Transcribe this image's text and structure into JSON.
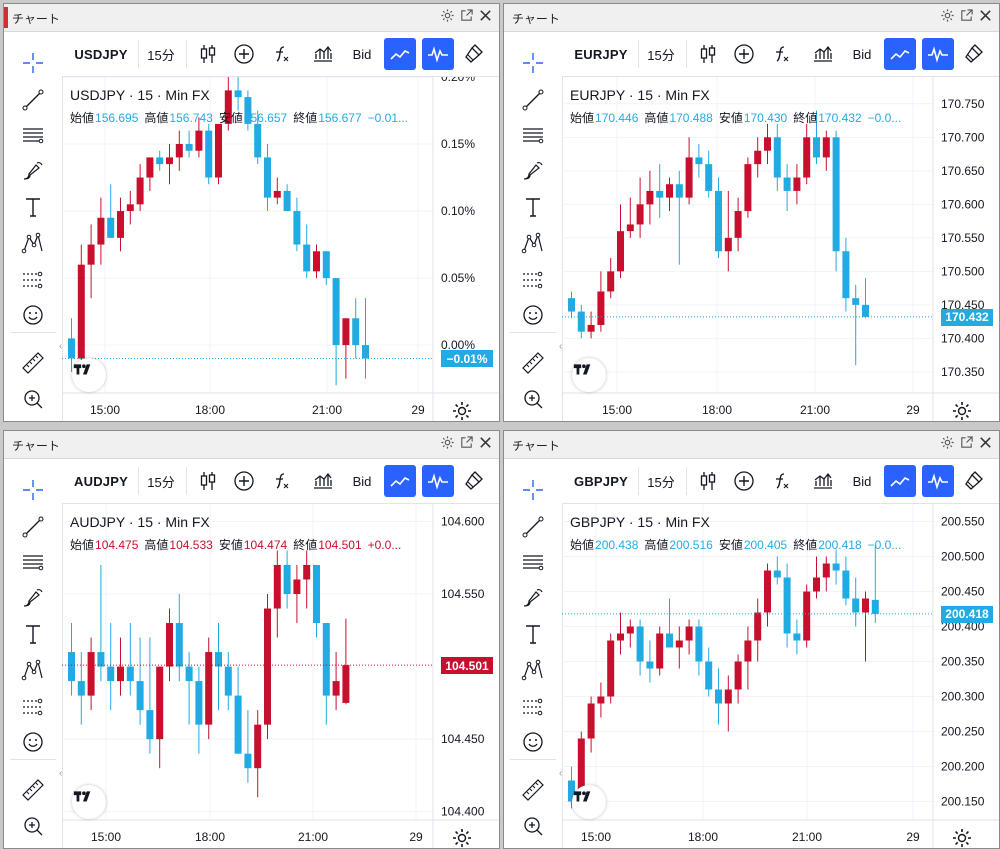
{
  "colors": {
    "up": "#c8102e",
    "down": "#22abe3",
    "accent": "#2962ff",
    "grid": "#f0f3fa",
    "text": "#131722"
  },
  "window_controls": [
    "gear-icon",
    "popout-icon",
    "close-icon"
  ],
  "left_tools": [
    "crosshair-icon",
    "trend-line-icon",
    "fib-icon",
    "brush-icon",
    "text-icon",
    "pattern-icon",
    "forecast-icon",
    "emoji-icon",
    "ruler-icon",
    "zoom-in-icon"
  ],
  "panels": [
    {
      "window_title": "チャート",
      "symbol": "USDJPY",
      "timeframe": "15分",
      "price_type": "Bid",
      "legend_title": "USDJPY · 15 · Min FX",
      "ohlc": {
        "open_label": "始値",
        "open": "156.695",
        "high_label": "高値",
        "high": "156.743",
        "low_label": "安値",
        "low": "156.657",
        "close_label": "終値",
        "close": "156.677",
        "change": "−0.01...",
        "color": "#22abe3"
      },
      "last_label": "−0.01%",
      "last_value": -0.01,
      "last_color": "#22abe3",
      "time_labels": [
        "15:00",
        "18:00",
        "21:00",
        "29"
      ],
      "chart_data": {
        "type": "candlestick",
        "y_unit": "percent",
        "ylim": [
          -0.035,
          0.2
        ],
        "y_ticks": [
          0,
          0.05,
          0.1,
          0.15,
          0.2
        ],
        "y_tick_labels": [
          "0.00%",
          "0.05%",
          "0.10%",
          "0.15%",
          "0.20%"
        ],
        "candles": [
          [
            0.005,
            0.02,
            -0.02,
            -0.01
          ],
          [
            -0.01,
            0.075,
            -0.015,
            0.06
          ],
          [
            0.06,
            0.09,
            0.035,
            0.075
          ],
          [
            0.075,
            0.11,
            0.06,
            0.095
          ],
          [
            0.095,
            0.12,
            0.08,
            0.08
          ],
          [
            0.08,
            0.11,
            0.07,
            0.1
          ],
          [
            0.1,
            0.115,
            0.09,
            0.105
          ],
          [
            0.105,
            0.135,
            0.1,
            0.125
          ],
          [
            0.125,
            0.14,
            0.115,
            0.14
          ],
          [
            0.14,
            0.145,
            0.13,
            0.135
          ],
          [
            0.135,
            0.15,
            0.12,
            0.14
          ],
          [
            0.14,
            0.16,
            0.13,
            0.15
          ],
          [
            0.15,
            0.16,
            0.14,
            0.145
          ],
          [
            0.145,
            0.17,
            0.14,
            0.16
          ],
          [
            0.16,
            0.165,
            0.12,
            0.125
          ],
          [
            0.125,
            0.165,
            0.12,
            0.165
          ],
          [
            0.165,
            0.2,
            0.16,
            0.19
          ],
          [
            0.19,
            0.2,
            0.175,
            0.185
          ],
          [
            0.185,
            0.19,
            0.16,
            0.165
          ],
          [
            0.165,
            0.175,
            0.135,
            0.14
          ],
          [
            0.14,
            0.15,
            0.1,
            0.11
          ],
          [
            0.11,
            0.125,
            0.105,
            0.115
          ],
          [
            0.115,
            0.12,
            0.1,
            0.1
          ],
          [
            0.1,
            0.11,
            0.07,
            0.075
          ],
          [
            0.075,
            0.09,
            0.05,
            0.055
          ],
          [
            0.055,
            0.075,
            0.05,
            0.07
          ],
          [
            0.07,
            0.07,
            0.045,
            0.05
          ],
          [
            0.05,
            0.05,
            -0.03,
            0.0
          ],
          [
            0.0,
            0.02,
            -0.025,
            0.02
          ],
          [
            0.02,
            0.035,
            -0.01,
            -0.0
          ],
          [
            0.0,
            0.035,
            -0.025,
            -0.01
          ]
        ]
      }
    },
    {
      "window_title": "チャート",
      "symbol": "EURJPY",
      "timeframe": "15分",
      "price_type": "Bid",
      "legend_title": "EURJPY · 15 · Min FX",
      "ohlc": {
        "open_label": "始値",
        "open": "170.446",
        "high_label": "高値",
        "high": "170.488",
        "low_label": "安値",
        "low": "170.430",
        "close_label": "終値",
        "close": "170.432",
        "change": "−0.0...",
        "color": "#22abe3"
      },
      "last_label": "170.432",
      "last_value": 170.432,
      "last_color": "#22abe3",
      "time_labels": [
        "15:00",
        "18:00",
        "21:00",
        "29"
      ],
      "chart_data": {
        "type": "candlestick",
        "y_unit": "JPY",
        "ylim": [
          170.32,
          170.79
        ],
        "y_ticks": [
          170.35,
          170.4,
          170.45,
          170.5,
          170.55,
          170.6,
          170.65,
          170.7,
          170.75
        ],
        "y_tick_labels": [
          "170.350",
          "170.400",
          "170.450",
          "170.500",
          "170.550",
          "170.600",
          "170.650",
          "170.700",
          "170.750"
        ],
        "candles": [
          [
            170.46,
            170.47,
            170.43,
            170.44
          ],
          [
            170.44,
            170.45,
            170.4,
            170.41
          ],
          [
            170.41,
            170.44,
            170.4,
            170.42
          ],
          [
            170.42,
            170.5,
            170.41,
            170.47
          ],
          [
            170.47,
            170.52,
            170.46,
            170.5
          ],
          [
            170.5,
            170.6,
            170.49,
            170.56
          ],
          [
            170.56,
            170.61,
            170.55,
            170.57
          ],
          [
            170.57,
            170.64,
            170.55,
            170.6
          ],
          [
            170.6,
            170.65,
            170.57,
            170.62
          ],
          [
            170.62,
            170.66,
            170.58,
            170.61
          ],
          [
            170.61,
            170.64,
            170.59,
            170.63
          ],
          [
            170.63,
            170.65,
            170.51,
            170.61
          ],
          [
            170.61,
            170.7,
            170.6,
            170.67
          ],
          [
            170.67,
            170.69,
            170.64,
            170.66
          ],
          [
            170.66,
            170.68,
            170.61,
            170.62
          ],
          [
            170.62,
            170.64,
            170.52,
            170.53
          ],
          [
            170.53,
            170.62,
            170.5,
            170.55
          ],
          [
            170.55,
            170.61,
            170.53,
            170.59
          ],
          [
            170.59,
            170.67,
            170.58,
            170.66
          ],
          [
            170.66,
            170.7,
            170.64,
            170.68
          ],
          [
            170.68,
            170.72,
            170.66,
            170.7
          ],
          [
            170.7,
            170.72,
            170.62,
            170.64
          ],
          [
            170.64,
            170.66,
            170.59,
            170.62
          ],
          [
            170.62,
            170.66,
            170.6,
            170.64
          ],
          [
            170.64,
            170.72,
            170.63,
            170.7
          ],
          [
            170.7,
            170.74,
            170.66,
            170.67
          ],
          [
            170.67,
            170.71,
            170.65,
            170.7
          ],
          [
            170.7,
            170.71,
            170.5,
            170.53
          ],
          [
            170.53,
            170.55,
            170.44,
            170.46
          ],
          [
            170.46,
            170.48,
            170.36,
            170.45
          ],
          [
            170.45,
            170.49,
            170.43,
            170.432
          ]
        ]
      }
    },
    {
      "window_title": "チャート",
      "symbol": "AUDJPY",
      "timeframe": "15分",
      "price_type": "Bid",
      "legend_title": "AUDJPY · 15 · Min FX",
      "ohlc": {
        "open_label": "始値",
        "open": "104.475",
        "high_label": "高値",
        "high": "104.533",
        "low_label": "安値",
        "low": "104.474",
        "close_label": "終値",
        "close": "104.501",
        "change": "+0.0...",
        "color": "#c8102e"
      },
      "last_label": "104.501",
      "last_value": 104.501,
      "last_color": "#c8102e",
      "time_labels": [
        "15:00",
        "18:00",
        "21:00",
        "29"
      ],
      "chart_data": {
        "type": "candlestick",
        "y_unit": "JPY",
        "ylim": [
          104.395,
          104.612
        ],
        "y_ticks": [
          104.4,
          104.45,
          104.55,
          104.6
        ],
        "y_tick_labels": [
          "104.400",
          "104.450",
          "104.550",
          "104.600"
        ],
        "candles": [
          [
            104.51,
            104.53,
            104.48,
            104.49
          ],
          [
            104.49,
            104.51,
            104.46,
            104.48
          ],
          [
            104.48,
            104.52,
            104.47,
            104.51
          ],
          [
            104.51,
            104.57,
            104.49,
            104.5
          ],
          [
            104.5,
            104.53,
            104.47,
            104.49
          ],
          [
            104.49,
            104.52,
            104.48,
            104.5
          ],
          [
            104.5,
            104.53,
            104.48,
            104.49
          ],
          [
            104.49,
            104.52,
            104.46,
            104.47
          ],
          [
            104.47,
            104.52,
            104.44,
            104.45
          ],
          [
            104.45,
            104.5,
            104.43,
            104.5
          ],
          [
            104.5,
            104.54,
            104.49,
            104.53
          ],
          [
            104.53,
            104.55,
            104.49,
            104.5
          ],
          [
            104.5,
            104.51,
            104.46,
            104.49
          ],
          [
            104.49,
            104.5,
            104.44,
            104.46
          ],
          [
            104.46,
            104.52,
            104.45,
            104.51
          ],
          [
            104.51,
            104.53,
            104.47,
            104.5
          ],
          [
            104.5,
            104.51,
            104.47,
            104.48
          ],
          [
            104.48,
            104.5,
            104.44,
            104.44
          ],
          [
            104.44,
            104.47,
            104.42,
            104.43
          ],
          [
            104.43,
            104.47,
            104.41,
            104.46
          ],
          [
            104.46,
            104.55,
            104.45,
            104.54
          ],
          [
            104.54,
            104.58,
            104.52,
            104.57
          ],
          [
            104.57,
            104.58,
            104.54,
            104.55
          ],
          [
            104.55,
            104.57,
            104.53,
            104.56
          ],
          [
            104.56,
            104.58,
            104.54,
            104.57
          ],
          [
            104.57,
            104.57,
            104.52,
            104.53
          ],
          [
            104.53,
            104.53,
            104.46,
            104.48
          ],
          [
            104.48,
            104.51,
            104.47,
            104.49
          ],
          [
            104.475,
            104.533,
            104.474,
            104.501
          ]
        ]
      }
    },
    {
      "window_title": "チャート",
      "symbol": "GBPJPY",
      "timeframe": "15分",
      "price_type": "Bid",
      "legend_title": "GBPJPY · 15 · Min FX",
      "ohlc": {
        "open_label": "始値",
        "open": "200.438",
        "high_label": "高値",
        "high": "200.516",
        "low_label": "安値",
        "low": "200.405",
        "close_label": "終値",
        "close": "200.418",
        "change": "−0.0...",
        "color": "#22abe3"
      },
      "last_label": "200.418",
      "last_value": 200.418,
      "last_color": "#22abe3",
      "time_labels": [
        "15:00",
        "18:00",
        "21:00",
        "29"
      ],
      "chart_data": {
        "type": "candlestick",
        "y_unit": "JPY",
        "ylim": [
          200.125,
          200.575
        ],
        "y_ticks": [
          200.15,
          200.2,
          200.25,
          200.3,
          200.35,
          200.4,
          200.45,
          200.5,
          200.55
        ],
        "y_tick_labels": [
          "200.150",
          "200.200",
          "200.250",
          "200.300",
          "200.350",
          "200.400",
          "200.450",
          "200.500",
          "200.550"
        ],
        "candles": [
          [
            200.18,
            200.2,
            200.14,
            200.15
          ],
          [
            200.15,
            200.25,
            200.14,
            200.24
          ],
          [
            200.24,
            200.3,
            200.22,
            200.29
          ],
          [
            200.29,
            200.32,
            200.27,
            200.3
          ],
          [
            200.3,
            200.39,
            200.29,
            200.38
          ],
          [
            200.38,
            200.42,
            200.36,
            200.39
          ],
          [
            200.39,
            200.41,
            200.37,
            200.4
          ],
          [
            200.4,
            200.41,
            200.33,
            200.35
          ],
          [
            200.35,
            200.38,
            200.32,
            200.34
          ],
          [
            200.34,
            200.4,
            200.33,
            200.39
          ],
          [
            200.39,
            200.44,
            200.37,
            200.37
          ],
          [
            200.37,
            200.4,
            200.34,
            200.38
          ],
          [
            200.38,
            200.41,
            200.36,
            200.4
          ],
          [
            200.4,
            200.41,
            200.33,
            200.35
          ],
          [
            200.35,
            200.37,
            200.3,
            200.31
          ],
          [
            200.31,
            200.34,
            200.26,
            200.29
          ],
          [
            200.29,
            200.33,
            200.25,
            200.31
          ],
          [
            200.31,
            200.36,
            200.29,
            200.35
          ],
          [
            200.35,
            200.4,
            200.31,
            200.38
          ],
          [
            200.38,
            200.44,
            200.35,
            200.42
          ],
          [
            200.42,
            200.49,
            200.4,
            200.48
          ],
          [
            200.48,
            200.5,
            200.46,
            200.47
          ],
          [
            200.47,
            200.49,
            200.37,
            200.39
          ],
          [
            200.39,
            200.41,
            200.36,
            200.38
          ],
          [
            200.38,
            200.46,
            200.37,
            200.45
          ],
          [
            200.45,
            200.5,
            200.44,
            200.47
          ],
          [
            200.47,
            200.5,
            200.45,
            200.49
          ],
          [
            200.49,
            200.51,
            200.46,
            200.48
          ],
          [
            200.48,
            200.5,
            200.43,
            200.44
          ],
          [
            200.44,
            200.47,
            200.4,
            200.42
          ],
          [
            200.42,
            200.45,
            200.35,
            200.44
          ],
          [
            200.438,
            200.516,
            200.405,
            200.418
          ]
        ]
      }
    }
  ]
}
